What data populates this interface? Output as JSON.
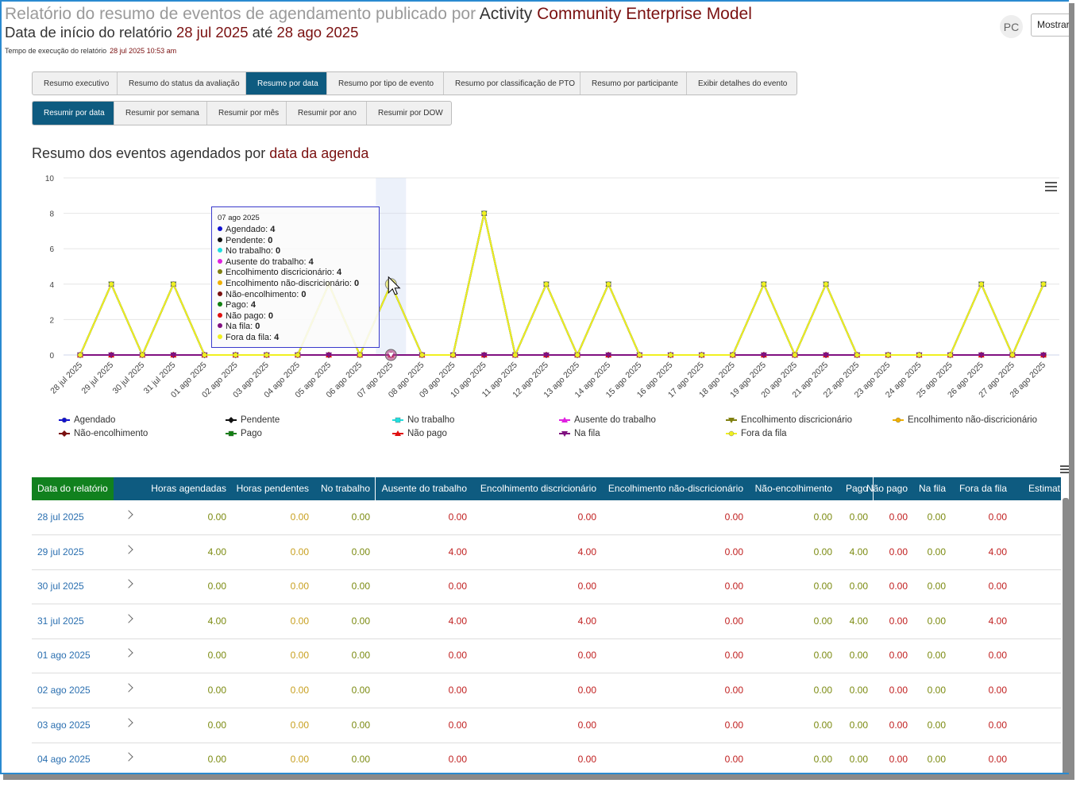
{
  "header": {
    "title_prefix": "Relatório do resumo de eventos de agendamento publicado por",
    "title_activity": "Activity",
    "title_model": "Community Enterprise Model",
    "subtitle_prefix": "Data de início do relatório",
    "start_date": "28 jul 2025",
    "until_word": "até",
    "end_date": "28 ago 2025",
    "exec_label": "Tempo de execução do relatório",
    "exec_value": "28 jul 2025 10:53 am",
    "avatar_initials": "PC",
    "show_button": "Mostrar"
  },
  "tabs_primary": [
    {
      "label": "Resumo executivo",
      "active": false
    },
    {
      "label": "Resumo do status da avaliação",
      "active": false
    },
    {
      "label": "Resumo por data",
      "active": true
    },
    {
      "label": "Resumo por tipo de evento",
      "active": false
    },
    {
      "label": "Resumo por classificação de PTO",
      "active": false
    },
    {
      "label": "Resumo por participante",
      "active": false
    },
    {
      "label": "Exibir detalhes do evento",
      "active": false
    }
  ],
  "tabs_secondary": [
    {
      "label": "Resumir por data",
      "active": true
    },
    {
      "label": "Resumir por semana",
      "active": false
    },
    {
      "label": "Resumir por mês",
      "active": false
    },
    {
      "label": "Resumir por ano",
      "active": false
    },
    {
      "label": "Resumir por DOW",
      "active": false
    }
  ],
  "chart_heading": {
    "prefix": "Resumo dos eventos agendados por",
    "highlight": "data da agenda"
  },
  "chart_data": {
    "type": "line",
    "title": "Resumo dos eventos agendados por data da agenda",
    "xlabel": "",
    "ylabel": "",
    "ylim": [
      0,
      10
    ],
    "yticks": [
      0,
      2,
      4,
      6,
      8,
      10
    ],
    "grid": true,
    "legend_position": "bottom",
    "categories": [
      "28 jul 2025",
      "29 jul 2025",
      "30 jul 2025",
      "31 jul 2025",
      "01 ago 2025",
      "02 ago 2025",
      "03 ago 2025",
      "04 ago 2025",
      "05 ago 2025",
      "06 ago 2025",
      "07 ago 2025",
      "08 ago 2025",
      "09 ago 2025",
      "10 ago 2025",
      "11 ago 2025",
      "12 ago 2025",
      "13 ago 2025",
      "14 ago 2025",
      "15 ago 2025",
      "16 ago 2025",
      "17 ago 2025",
      "18 ago 2025",
      "19 ago 2025",
      "20 ago 2025",
      "21 ago 2025",
      "22 ago 2025",
      "23 ago 2025",
      "24 ago 2025",
      "25 ago 2025",
      "26 ago 2025",
      "27 ago 2025",
      "28 ago 2025"
    ],
    "series": [
      {
        "name": "Agendado",
        "color": "#1010d0",
        "marker": "circle",
        "values": [
          0,
          4,
          0,
          4,
          0,
          0,
          0,
          0,
          4,
          0,
          4,
          0,
          0,
          8,
          0,
          4,
          0,
          4,
          0,
          0,
          0,
          0,
          4,
          0,
          4,
          0,
          0,
          0,
          0,
          4,
          0,
          4
        ]
      },
      {
        "name": "Pendente",
        "color": "#111111",
        "marker": "diamond",
        "values": [
          0,
          0,
          0,
          0,
          0,
          0,
          0,
          0,
          0,
          0,
          0,
          0,
          0,
          0,
          0,
          0,
          0,
          0,
          0,
          0,
          0,
          0,
          0,
          0,
          0,
          0,
          0,
          0,
          0,
          0,
          0,
          0
        ]
      },
      {
        "name": "No trabalho",
        "color": "#20e0e0",
        "marker": "square",
        "values": [
          0,
          0,
          0,
          0,
          0,
          0,
          0,
          0,
          0,
          0,
          0,
          0,
          0,
          0,
          0,
          0,
          0,
          0,
          0,
          0,
          0,
          0,
          0,
          0,
          0,
          0,
          0,
          0,
          0,
          0,
          0,
          0
        ]
      },
      {
        "name": "Ausente do trabalho",
        "color": "#e020e0",
        "marker": "triangle",
        "values": [
          0,
          4,
          0,
          4,
          0,
          0,
          0,
          0,
          4,
          0,
          4,
          0,
          0,
          8,
          0,
          4,
          0,
          4,
          0,
          0,
          0,
          0,
          4,
          0,
          4,
          0,
          0,
          0,
          0,
          4,
          0,
          4
        ]
      },
      {
        "name": "Encolhimento discricionário",
        "color": "#808010",
        "marker": "triangle-down",
        "values": [
          0,
          4,
          0,
          4,
          0,
          0,
          0,
          0,
          4,
          0,
          4,
          0,
          0,
          8,
          0,
          4,
          0,
          4,
          0,
          0,
          0,
          0,
          4,
          0,
          4,
          0,
          0,
          0,
          0,
          4,
          0,
          4
        ]
      },
      {
        "name": "Encolhimento não-discricionário",
        "color": "#f0b000",
        "marker": "circle",
        "values": [
          0,
          0,
          0,
          0,
          0,
          0,
          0,
          0,
          0,
          0,
          0,
          0,
          0,
          0,
          0,
          0,
          0,
          0,
          0,
          0,
          0,
          0,
          0,
          0,
          0,
          0,
          0,
          0,
          0,
          0,
          0,
          0
        ]
      },
      {
        "name": "Não-encolhimento",
        "color": "#7a1010",
        "marker": "diamond",
        "values": [
          0,
          0,
          0,
          0,
          0,
          0,
          0,
          0,
          0,
          0,
          0,
          0,
          0,
          0,
          0,
          0,
          0,
          0,
          0,
          0,
          0,
          0,
          0,
          0,
          0,
          0,
          0,
          0,
          0,
          0,
          0,
          0
        ]
      },
      {
        "name": "Pago",
        "color": "#108010",
        "marker": "square",
        "values": [
          0,
          4,
          0,
          4,
          0,
          0,
          0,
          0,
          4,
          0,
          4,
          0,
          0,
          8,
          0,
          4,
          0,
          4,
          0,
          0,
          0,
          0,
          4,
          0,
          4,
          0,
          0,
          0,
          0,
          4,
          0,
          4
        ]
      },
      {
        "name": "Não pago",
        "color": "#e01010",
        "marker": "triangle",
        "values": [
          0,
          0,
          0,
          0,
          0,
          0,
          0,
          0,
          0,
          0,
          0,
          0,
          0,
          0,
          0,
          0,
          0,
          0,
          0,
          0,
          0,
          0,
          0,
          0,
          0,
          0,
          0,
          0,
          0,
          0,
          0,
          0
        ]
      },
      {
        "name": "Na fila",
        "color": "#801080",
        "marker": "triangle-down",
        "values": [
          0,
          0,
          0,
          0,
          0,
          0,
          0,
          0,
          0,
          0,
          0,
          0,
          0,
          0,
          0,
          0,
          0,
          0,
          0,
          0,
          0,
          0,
          0,
          0,
          0,
          0,
          0,
          0,
          0,
          0,
          0,
          0
        ]
      },
      {
        "name": "Fora da fila",
        "color": "#f0f020",
        "marker": "circle",
        "values": [
          0,
          4,
          0,
          4,
          0,
          0,
          0,
          0,
          4,
          0,
          4,
          0,
          0,
          8,
          0,
          4,
          0,
          4,
          0,
          0,
          0,
          0,
          4,
          0,
          4,
          0,
          0,
          0,
          0,
          4,
          0,
          4
        ]
      }
    ],
    "hover_category": "07 ago 2025"
  },
  "tooltip": {
    "date": "07 ago 2025",
    "rows": [
      {
        "label": "Agendado",
        "value": "4",
        "color": "#1010d0"
      },
      {
        "label": "Pendente",
        "value": "0",
        "color": "#111111"
      },
      {
        "label": "No trabalho",
        "value": "0",
        "color": "#20e0e0"
      },
      {
        "label": "Ausente do trabalho",
        "value": "4",
        "color": "#e020e0"
      },
      {
        "label": "Encolhimento discricionário",
        "value": "4",
        "color": "#808010"
      },
      {
        "label": "Encolhimento não-discricionário",
        "value": "0",
        "color": "#f0b000"
      },
      {
        "label": "Não-encolhimento",
        "value": "0",
        "color": "#7a1010"
      },
      {
        "label": "Pago",
        "value": "4",
        "color": "#108010"
      },
      {
        "label": "Não pago",
        "value": "0",
        "color": "#e01010"
      },
      {
        "label": "Na fila",
        "value": "0",
        "color": "#801080"
      },
      {
        "label": "Fora da fila",
        "value": "4",
        "color": "#f0f020"
      }
    ]
  },
  "table": {
    "columns": [
      "Data do relatório",
      "Horas agendadas",
      "Horas pendentes",
      "No trabalho",
      "Ausente do trabalho",
      "Encolhimento discricionário",
      "Encolhimento não-discricionário",
      "Não-encolhimento",
      "Pago",
      "Não pago",
      "Na fila",
      "Fora da fila",
      "Estimat"
    ],
    "rows": [
      {
        "date": "28 jul 2025",
        "values": [
          "0.00",
          "0.00",
          "0.00",
          "0.00",
          "0.00",
          "0.00",
          "0.00",
          "0.00",
          "0.00",
          "0.00",
          "0.00"
        ]
      },
      {
        "date": "29 jul 2025",
        "values": [
          "4.00",
          "0.00",
          "0.00",
          "4.00",
          "4.00",
          "0.00",
          "0.00",
          "4.00",
          "0.00",
          "0.00",
          "4.00"
        ]
      },
      {
        "date": "30 jul 2025",
        "values": [
          "0.00",
          "0.00",
          "0.00",
          "0.00",
          "0.00",
          "0.00",
          "0.00",
          "0.00",
          "0.00",
          "0.00",
          "0.00"
        ]
      },
      {
        "date": "31 jul 2025",
        "values": [
          "4.00",
          "0.00",
          "0.00",
          "4.00",
          "4.00",
          "0.00",
          "0.00",
          "4.00",
          "0.00",
          "0.00",
          "4.00"
        ]
      },
      {
        "date": "01 ago 2025",
        "values": [
          "0.00",
          "0.00",
          "0.00",
          "0.00",
          "0.00",
          "0.00",
          "0.00",
          "0.00",
          "0.00",
          "0.00",
          "0.00"
        ]
      },
      {
        "date": "02 ago 2025",
        "values": [
          "0.00",
          "0.00",
          "0.00",
          "0.00",
          "0.00",
          "0.00",
          "0.00",
          "0.00",
          "0.00",
          "0.00",
          "0.00"
        ]
      },
      {
        "date": "03 ago 2025",
        "values": [
          "0.00",
          "0.00",
          "0.00",
          "0.00",
          "0.00",
          "0.00",
          "0.00",
          "0.00",
          "0.00",
          "0.00",
          "0.00"
        ]
      },
      {
        "date": "04 ago 2025",
        "values": [
          "0.00",
          "0.00",
          "0.00",
          "0.00",
          "0.00",
          "0.00",
          "0.00",
          "0.00",
          "0.00",
          "0.00",
          "0.00"
        ]
      }
    ],
    "value_colors": [
      "#7b8a10",
      "#c8a020",
      "#7b8a10",
      "#c02020",
      "#c02020",
      "#c02020",
      "#7b8a10",
      "#7b8a10",
      "#c02020",
      "#7b8a10",
      "#c02020"
    ]
  }
}
